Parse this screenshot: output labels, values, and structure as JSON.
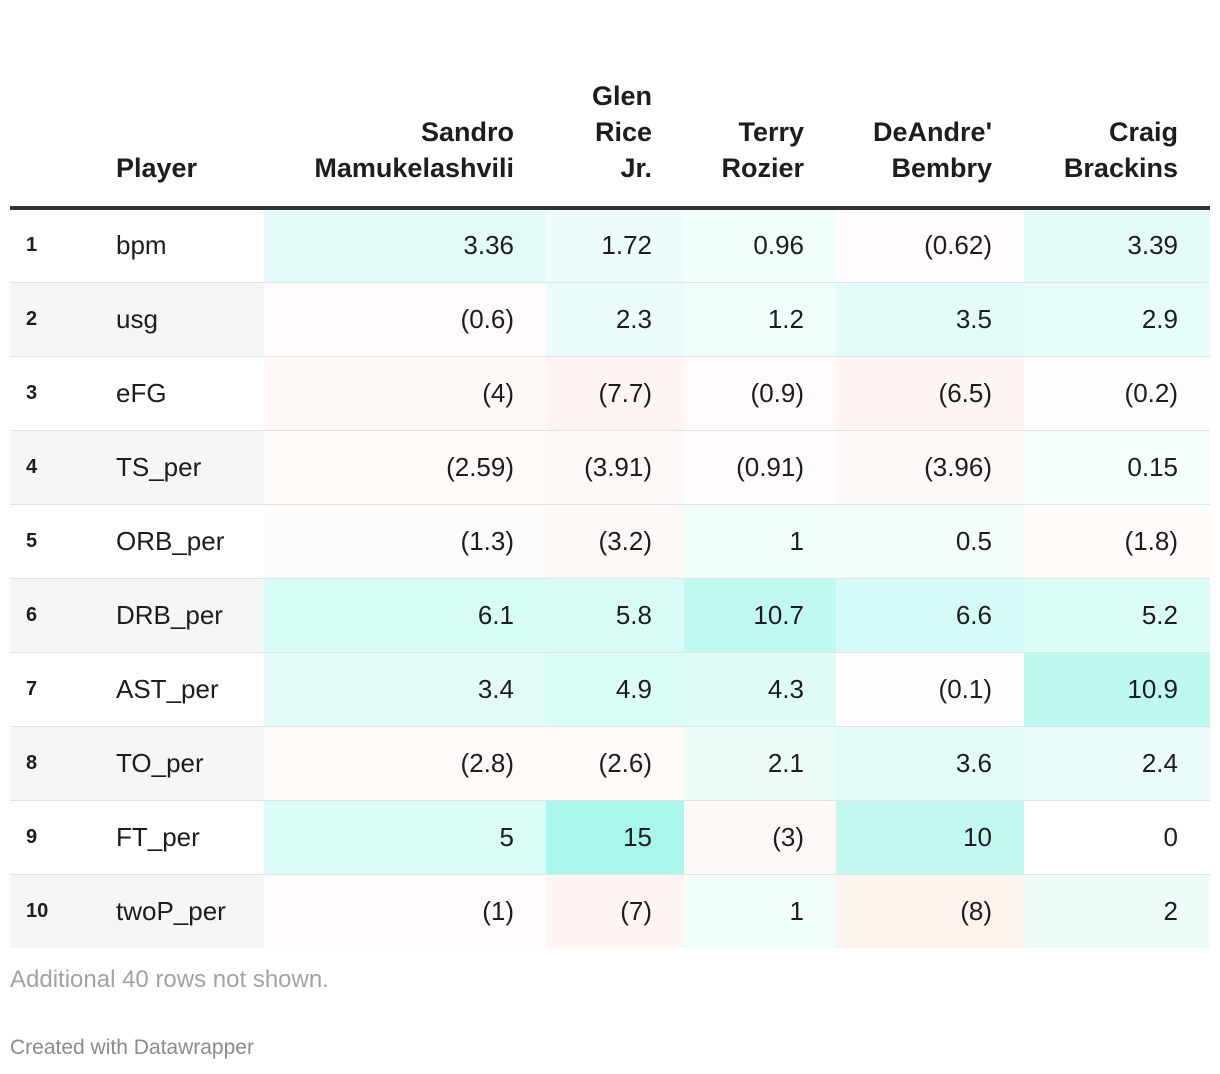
{
  "chart_data": {
    "type": "table",
    "columns": [
      "",
      "Player",
      "Sandro Mamukelashvili",
      "Glen Rice Jr.",
      "Terry Rozier",
      "DeAndre' Bembry",
      "Craig Brackins"
    ],
    "header_lines": [
      [
        ""
      ],
      [
        "Player"
      ],
      [
        "Sandro",
        "Mamukelashvili"
      ],
      [
        "Glen",
        "Rice",
        "Jr."
      ],
      [
        "Terry",
        "Rozier"
      ],
      [
        "DeAndre'",
        "Bembry"
      ],
      [
        "Craig",
        "Brackins"
      ]
    ],
    "rows": [
      {
        "rank": "1",
        "player": "bpm",
        "values": [
          3.36,
          1.72,
          0.96,
          -0.62,
          3.39
        ],
        "display": [
          "3.36",
          "1.72",
          "0.96",
          "(0.62)",
          "3.39"
        ]
      },
      {
        "rank": "2",
        "player": "usg",
        "values": [
          -0.6,
          2.3,
          1.2,
          3.5,
          2.9
        ],
        "display": [
          "(0.6)",
          "2.3",
          "1.2",
          "3.5",
          "2.9"
        ]
      },
      {
        "rank": "3",
        "player": "eFG",
        "values": [
          -4,
          -7.7,
          -0.9,
          -6.5,
          -0.2
        ],
        "display": [
          "(4)",
          "(7.7)",
          "(0.9)",
          "(6.5)",
          "(0.2)"
        ]
      },
      {
        "rank": "4",
        "player": "TS_per",
        "values": [
          -2.59,
          -3.91,
          -0.91,
          -3.96,
          0.15
        ],
        "display": [
          "(2.59)",
          "(3.91)",
          "(0.91)",
          "(3.96)",
          "0.15"
        ]
      },
      {
        "rank": "5",
        "player": "ORB_per",
        "values": [
          -1.3,
          -3.2,
          1,
          0.5,
          -1.8
        ],
        "display": [
          "(1.3)",
          "(3.2)",
          "1",
          "0.5",
          "(1.8)"
        ]
      },
      {
        "rank": "6",
        "player": "DRB_per",
        "values": [
          6.1,
          5.8,
          10.7,
          6.6,
          5.2
        ],
        "display": [
          "6.1",
          "5.8",
          "10.7",
          "6.6",
          "5.2"
        ]
      },
      {
        "rank": "7",
        "player": "AST_per",
        "values": [
          3.4,
          4.9,
          4.3,
          -0.1,
          10.9
        ],
        "display": [
          "3.4",
          "4.9",
          "4.3",
          "(0.1)",
          "10.9"
        ]
      },
      {
        "rank": "8",
        "player": "TO_per",
        "values": [
          -2.8,
          -2.6,
          2.1,
          3.6,
          2.4
        ],
        "display": [
          "(2.8)",
          "(2.6)",
          "2.1",
          "3.6",
          "2.4"
        ]
      },
      {
        "rank": "9",
        "player": "FT_per",
        "values": [
          5,
          15,
          -3,
          10,
          0
        ],
        "display": [
          "5",
          "15",
          "(3)",
          "10",
          "0"
        ]
      },
      {
        "rank": "10",
        "player": "twoP_per",
        "values": [
          -1,
          -7,
          1,
          -8,
          2
        ],
        "display": [
          "(1)",
          "(7)",
          "1",
          "(8)",
          "2"
        ]
      }
    ],
    "positive_color": "#1de9c8",
    "negative_color": "#f4b59a",
    "alt_row_color": "#f6f6f6"
  },
  "notes": "Additional 40 rows not shown.",
  "credit": "Created with Datawrapper"
}
